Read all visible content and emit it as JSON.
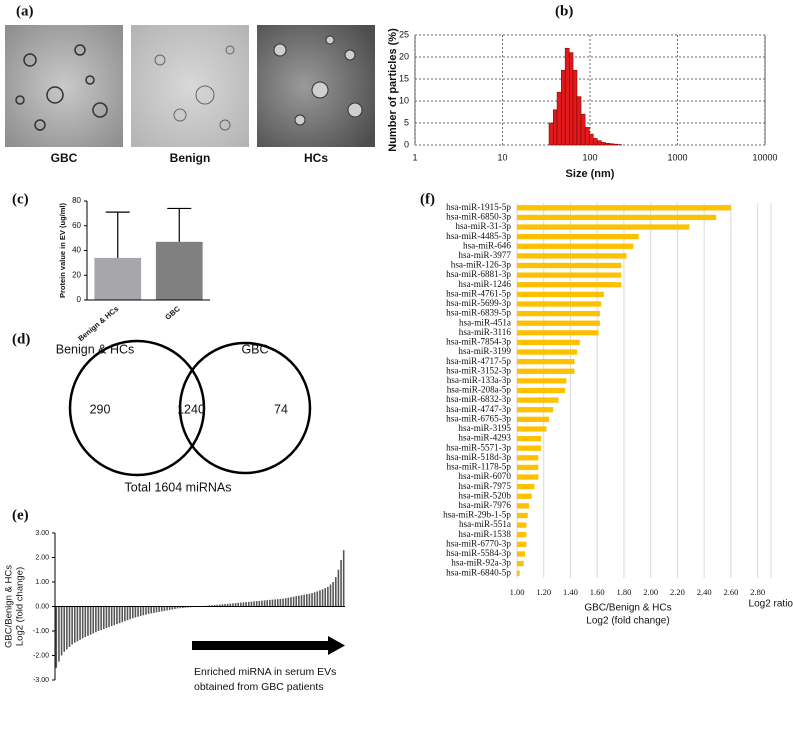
{
  "panel_labels": [
    "(a)",
    "(b)",
    "(c)",
    "(d)",
    "(e)",
    "(f)"
  ],
  "images": {
    "labels": [
      "GBC",
      "Benign",
      "HCs"
    ]
  },
  "chart_data": [
    {
      "type": "histogram",
      "xlabel": "Size (nm)",
      "ylabel": "Number of particles (%)",
      "color": "#e31a1c",
      "bins": [
        34,
        38,
        42,
        47,
        52,
        58,
        64,
        71,
        79,
        88,
        98,
        109,
        121,
        135,
        150,
        167,
        186,
        207,
        230
      ],
      "values": [
        5,
        8,
        12,
        17,
        22,
        21,
        17,
        11,
        7,
        4,
        2.5,
        1.5,
        1,
        0.6,
        0.4,
        0.3,
        0.2,
        0.1
      ],
      "xlim": [
        1,
        10000
      ],
      "xticks": [
        1,
        10,
        100,
        1000,
        10000
      ],
      "log_x": true,
      "ylim": [
        0,
        25
      ],
      "yticks": [
        0,
        5,
        10,
        15,
        20,
        25
      ],
      "grid": true
    },
    {
      "type": "bar",
      "ylabel": "Protein value in EV (ug/ml)",
      "categories": [
        "Benign & HCs",
        "GBC"
      ],
      "values": [
        34,
        47
      ],
      "errors": [
        37,
        27
      ],
      "colors": [
        "#a6a6ab",
        "#808080"
      ],
      "ylim": [
        0,
        80
      ],
      "yticks": [
        0,
        20,
        40,
        60,
        80
      ]
    },
    {
      "type": "venn",
      "sets": [
        "Benign & HCs",
        "GBC"
      ],
      "values": [
        290,
        1240,
        74
      ],
      "total_label": "Total 1604 miRNAs"
    },
    {
      "type": "bar",
      "ylabel": [
        "GBC/Benign & HCs",
        "Log2 (fold change)"
      ],
      "color": "#555555",
      "annotation": [
        "Enriched miRNA in serum EVs",
        "obtained from GBC patients"
      ],
      "values": [
        -2.5,
        -2.25,
        -2.0,
        -1.85,
        -1.75,
        -1.65,
        -1.55,
        -1.48,
        -1.42,
        -1.36,
        -1.3,
        -1.25,
        -1.2,
        -1.15,
        -1.1,
        -1.05,
        -1.0,
        -0.96,
        -0.92,
        -0.88,
        -0.84,
        -0.8,
        -0.76,
        -0.72,
        -0.68,
        -0.64,
        -0.6,
        -0.56,
        -0.52,
        -0.48,
        -0.45,
        -0.42,
        -0.39,
        -0.36,
        -0.33,
        -0.3,
        -0.28,
        -0.26,
        -0.24,
        -0.22,
        -0.2,
        -0.18,
        -0.16,
        -0.14,
        -0.12,
        -0.1,
        -0.08,
        -0.07,
        -0.06,
        -0.05,
        -0.04,
        -0.03,
        -0.02,
        -0.01,
        0,
        0.01,
        0.02,
        0.03,
        0.04,
        0.05,
        0.06,
        0.07,
        0.08,
        0.09,
        0.1,
        0.11,
        0.12,
        0.13,
        0.14,
        0.15,
        0.16,
        0.17,
        0.18,
        0.19,
        0.2,
        0.21,
        0.22,
        0.23,
        0.24,
        0.25,
        0.26,
        0.27,
        0.28,
        0.29,
        0.3,
        0.31,
        0.32,
        0.34,
        0.36,
        0.38,
        0.4,
        0.42,
        0.44,
        0.46,
        0.48,
        0.5,
        0.52,
        0.55,
        0.58,
        0.62,
        0.66,
        0.7,
        0.75,
        0.8,
        0.9,
        1.0,
        1.2,
        1.5,
        1.9,
        2.3
      ],
      "ylim": [
        -3,
        3
      ],
      "yticks": [
        {
          "value": 3,
          "label": "3.00"
        },
        {
          "value": 2,
          "label": "2.00"
        },
        {
          "value": 1,
          "label": "1.00"
        },
        {
          "value": 0,
          "label": "0.00"
        },
        {
          "value": -1,
          "label": "-1.00"
        },
        {
          "value": -2,
          "label": "-2.00"
        },
        {
          "value": -3,
          "label": "-3.00"
        }
      ]
    },
    {
      "type": "barh",
      "color": "#ffc000",
      "xlabel": [
        "GBC/Benign & HCs",
        "Log2 (fold change)"
      ],
      "x_axis_title": "Log2 ratio",
      "categories": [
        "hsa-miR-1915-5p",
        "hsa-miR-6850-3p",
        "hsa-miR-31-3p",
        "hsa-miR-4485-3p",
        "hsa-miR-646",
        "hsa-miR-3977",
        "hsa-miR-126-3p",
        "hsa-miR-6881-3p",
        "hsa-miR-1246",
        "hsa-miR-4761-5p",
        "hsa-miR-5699-3p",
        "hsa-miR-6839-5p",
        "hsa-miR-451a",
        "hsa-miR-3116",
        "hsa-miR-7854-3p",
        "hsa-miR-3199",
        "hsa-miR-4717-5p",
        "hsa-miR-3152-3p",
        "hsa-miR-133a-3p",
        "hsa-miR-208a-5p",
        "hsa-miR-6832-3p",
        "hsa-miR-4747-3p",
        "hsa-miR-6765-3p",
        "hsa-miR-3195",
        "hsa-miR-4293",
        "hsa-miR-5571-3p",
        "hsa-miR-518d-3p",
        "hsa-miR-1178-5p",
        "hsa-miR-6070",
        "hsa-miR-7975",
        "hsa-miR-520b",
        "hsa-miR-7976",
        "hsa-miR-29b-1-5p",
        "hsa-miR-551a",
        "hsa-miR-1538",
        "hsa-miR-6770-3p",
        "hsa-miR-5584-3p",
        "hsa-miR-92a-3p",
        "hsa-miR-6840-5p"
      ],
      "values": [
        2.6,
        2.49,
        2.29,
        1.91,
        1.87,
        1.82,
        1.78,
        1.78,
        1.78,
        1.65,
        1.63,
        1.62,
        1.62,
        1.61,
        1.47,
        1.45,
        1.43,
        1.43,
        1.37,
        1.36,
        1.31,
        1.27,
        1.24,
        1.22,
        1.18,
        1.18,
        1.16,
        1.16,
        1.16,
        1.13,
        1.11,
        1.09,
        1.08,
        1.07,
        1.07,
        1.07,
        1.06,
        1.05,
        1.02
      ],
      "xlim": [
        1.0,
        2.9
      ],
      "xticks": [
        {
          "value": 1.0,
          "label": "1.00"
        },
        {
          "value": 1.2,
          "label": "1.20"
        },
        {
          "value": 1.4,
          "label": "1.40"
        },
        {
          "value": 1.6,
          "label": "1.60"
        },
        {
          "value": 1.8,
          "label": "1.80"
        },
        {
          "value": 2.0,
          "label": "2.00"
        },
        {
          "value": 2.2,
          "label": "2.20"
        },
        {
          "value": 2.4,
          "label": "2.40"
        },
        {
          "value": 2.6,
          "label": "2.60"
        },
        {
          "value": 2.8,
          "label": "2.80"
        }
      ],
      "grid": true
    }
  ]
}
